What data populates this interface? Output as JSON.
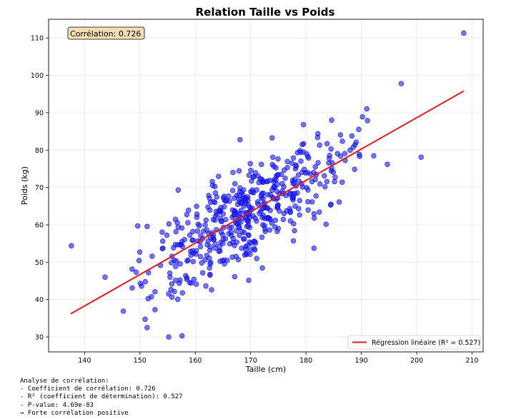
{
  "chart_data": {
    "type": "scatter",
    "title": "Relation Taille vs Poids",
    "xlabel": "Taille (cm)",
    "ylabel": "Poids (kg)",
    "xlim": [
      133.5,
      212
    ],
    "ylim": [
      26,
      115
    ],
    "x_ticks": [
      140,
      150,
      160,
      170,
      180,
      190,
      200,
      210
    ],
    "y_ticks": [
      30,
      40,
      50,
      60,
      70,
      80,
      90,
      100,
      110
    ],
    "grid": true,
    "correlation_box": "Corrélation: 0.726",
    "legend": {
      "position": "lower right",
      "label": "Régression linéaire (R² = 0.527)"
    },
    "regression_line": {
      "x": [
        137.5,
        208.5
      ],
      "y": [
        36.2,
        95.8
      ],
      "color": "#e31a1c"
    },
    "scatter_color": "#1f1fff",
    "outliers": [
      [
        137.6,
        54.4
      ],
      [
        143.7,
        46.0
      ],
      [
        149.6,
        59.7
      ],
      [
        155.2,
        30.0
      ],
      [
        157.6,
        30.3
      ],
      [
        190.2,
        88.9
      ],
      [
        197.2,
        97.8
      ],
      [
        200.8,
        78.1
      ],
      [
        208.5,
        111.3
      ],
      [
        151.3,
        32.5
      ],
      [
        147.0,
        36.9
      ],
      [
        194.7,
        76.2
      ]
    ],
    "point_count": 500,
    "point_cloud": {
      "x_mean": 170,
      "x_std": 10,
      "slope": 0.84,
      "intercept": -79.4,
      "noise_std": 7.2
    }
  },
  "analysis": {
    "heading": "Analyse de corrélation:",
    "lines": [
      "- Coefficient de corrélation: 0.726",
      "- R² (coefficient de détermination): 0.527",
      "- P-value: 4.69e-83",
      "→ Forte corrélation positive"
    ]
  }
}
